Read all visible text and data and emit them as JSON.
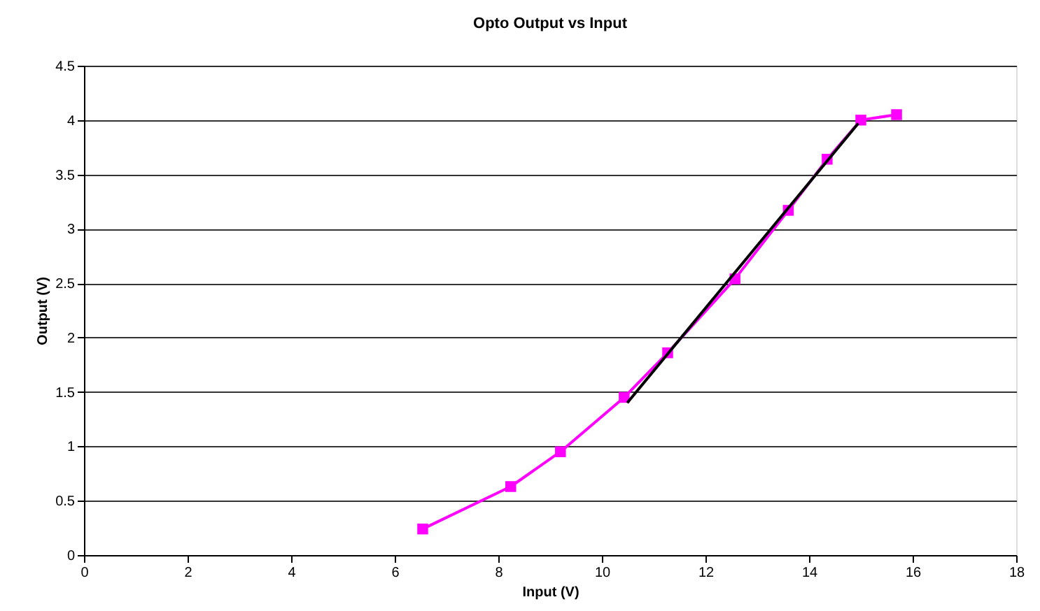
{
  "chart_data": {
    "type": "line",
    "title": "Opto Output vs Input",
    "xlabel": "Input (V)",
    "ylabel": "Output (V)",
    "xlim": [
      0,
      18
    ],
    "xticks": [
      0,
      2,
      4,
      6,
      8,
      10,
      12,
      14,
      16,
      18
    ],
    "ylim": [
      0,
      4.5
    ],
    "yticks": [
      0,
      0.5,
      1,
      1.5,
      2,
      2.5,
      3,
      3.5,
      4,
      4.5
    ],
    "grid": "y",
    "series": [
      {
        "color": "#ff00ff",
        "marker": "square",
        "line_style": "solid",
        "x": [
          6.54,
          8.24,
          9.2,
          10.43,
          11.27,
          12.57,
          13.6,
          14.35,
          15.0,
          15.69
        ],
        "values": [
          0.24,
          0.63,
          0.95,
          1.45,
          1.86,
          2.54,
          3.17,
          3.64,
          4.0,
          4.05
        ]
      },
      {
        "color": "#000000",
        "marker": "none",
        "line_style": "solid",
        "x": [
          10.49,
          14.95
        ],
        "values": [
          1.4,
          3.97
        ]
      }
    ]
  }
}
